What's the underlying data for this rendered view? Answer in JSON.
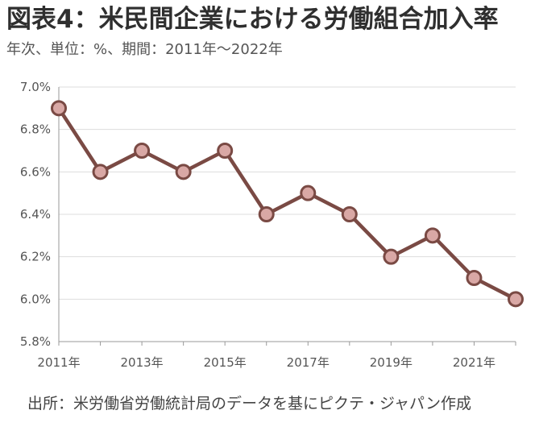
{
  "header": {
    "title": "図表4：米民間企業における労働組合加入率",
    "subtitle": "年次、単位：%、期間：2011年～2022年"
  },
  "footer": {
    "source": "出所：米労働省労働統計局のデータを基にピクテ・ジャパン作成"
  },
  "colors": {
    "line": "#7a4a44",
    "marker_fill": "#d9a8a5",
    "marker_stroke": "#7a4a44",
    "grid": "#dddddd",
    "axis": "#999999"
  },
  "chart_data": {
    "type": "line",
    "title": "図表4：米民間企業における労働組合加入率",
    "subtitle": "年次、単位：%、期間：2011年～2022年",
    "xlabel": "",
    "ylabel": "",
    "x": [
      2011,
      2012,
      2013,
      2014,
      2015,
      2016,
      2017,
      2018,
      2019,
      2020,
      2021,
      2022
    ],
    "x_tick_labels": [
      {
        "x": 2011,
        "label": "2011年"
      },
      {
        "x": 2013,
        "label": "2013年"
      },
      {
        "x": 2015,
        "label": "2015年"
      },
      {
        "x": 2017,
        "label": "2017年"
      },
      {
        "x": 2019,
        "label": "2019年"
      },
      {
        "x": 2021,
        "label": "2021年"
      }
    ],
    "series": [
      {
        "values": [
          6.9,
          6.6,
          6.7,
          6.6,
          6.7,
          6.4,
          6.5,
          6.4,
          6.2,
          6.3,
          6.1,
          6.0
        ]
      }
    ],
    "ylim": [
      5.8,
      7.0
    ],
    "y_ticks": [
      5.8,
      6.0,
      6.2,
      6.4,
      6.6,
      6.8,
      7.0
    ],
    "y_tick_labels": [
      "5.8%",
      "6.0%",
      "6.2%",
      "6.4%",
      "6.6%",
      "6.8%",
      "7.0%"
    ],
    "grid": true,
    "legend": "none"
  }
}
